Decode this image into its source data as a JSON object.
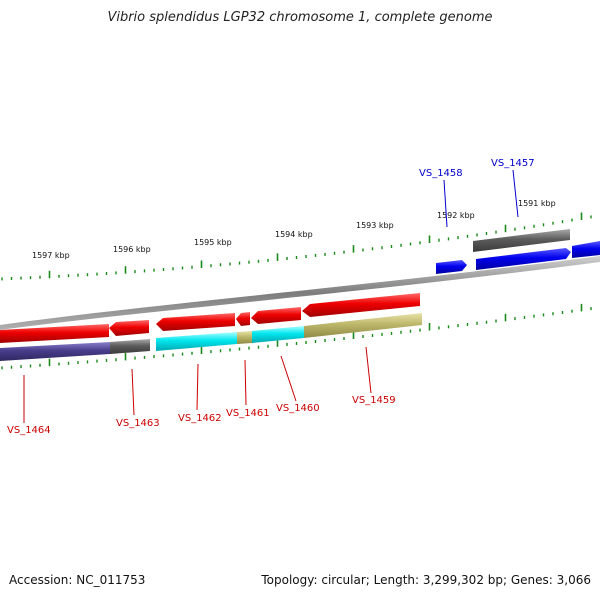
{
  "title": "Vibrio splendidus LGP32 chromosome 1, complete genome",
  "accession": "Accession: NC_011753",
  "summary": "Topology: circular; Length: 3,299,302 bp; Genes: 3,066",
  "scale_labels": [
    "1597 kbp",
    "1596 kbp",
    "1595 kbp",
    "1594 kbp",
    "1593 kbp",
    "1592 kbp",
    "1591 kbp"
  ],
  "genes_top": [
    {
      "name": "VS_1458",
      "color": "#0000cc"
    },
    {
      "name": "VS_1457",
      "color": "#0000cc"
    }
  ],
  "genes_bottom": [
    {
      "name": "VS_1464",
      "color": "#cc0000"
    },
    {
      "name": "VS_1463",
      "color": "#cc0000"
    },
    {
      "name": "VS_1462",
      "color": "#cc0000"
    },
    {
      "name": "VS_1461",
      "color": "#cc0000"
    },
    {
      "name": "VS_1460",
      "color": "#cc0000"
    },
    {
      "name": "VS_1459",
      "color": "#cc0000"
    }
  ],
  "colors": {
    "reverse_strand": "#e00000",
    "forward_strand": "#0000ee",
    "unknown_function": "#606060",
    "category_cyan": "#00e0e8",
    "category_olive": "#bdb76b",
    "category_purple": "#483d8b",
    "ruler_green": "#1a8a1a",
    "backbone": "#8a8a8a"
  }
}
